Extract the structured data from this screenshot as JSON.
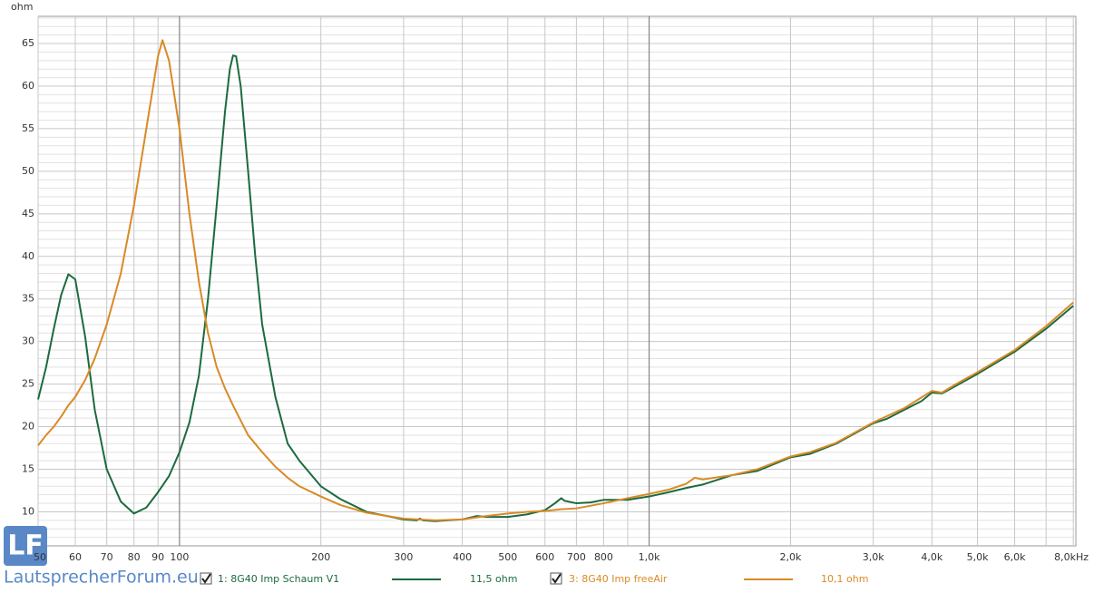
{
  "chart_data": {
    "type": "line",
    "y_unit": "ohm",
    "x_unit": "kHz",
    "log_x": true,
    "grid": true,
    "xlim": [
      50,
      8100
    ],
    "ylim": [
      6,
      68.2
    ],
    "xticks": [
      50,
      60,
      70,
      80,
      90,
      100,
      200,
      300,
      400,
      500,
      600,
      700,
      800,
      {
        "value": 1000,
        "label": "1,0k"
      },
      {
        "value": 2000,
        "label": "2,0k"
      },
      {
        "value": 3000,
        "label": "3,0k"
      },
      {
        "value": 4000,
        "label": "4,0k"
      },
      {
        "value": 5000,
        "label": "5,0k"
      },
      {
        "value": 6000,
        "label": "6,0k"
      },
      {
        "value": 8000,
        "label": "8,0kHz"
      }
    ],
    "xminorticks": [
      900,
      7000
    ],
    "xdecades": [
      100,
      1000
    ],
    "yticks": [
      10,
      15,
      20,
      25,
      30,
      35,
      40,
      45,
      50,
      55,
      60,
      65
    ],
    "yminorticks": [
      7,
      8,
      9,
      11,
      12,
      13,
      14,
      16,
      17,
      18,
      19,
      21,
      22,
      23,
      24,
      26,
      27,
      28,
      29,
      31,
      32,
      33,
      34,
      36,
      37,
      38,
      39,
      41,
      42,
      43,
      44,
      46,
      47,
      48,
      49,
      51,
      52,
      53,
      54,
      56,
      57,
      58,
      59,
      61,
      62,
      63,
      64,
      66,
      67,
      68
    ],
    "series": [
      {
        "name": "1: 8G40 Imp Schaum V1",
        "legend_value": "11,5 ohm",
        "color": "#1b6b3e",
        "x": [
          50,
          52,
          54,
          56,
          58,
          60,
          63,
          66,
          70,
          75,
          80,
          85,
          90,
          95,
          100,
          105,
          110,
          115,
          120,
          125,
          128,
          130,
          132,
          135,
          140,
          145,
          150,
          160,
          170,
          180,
          200,
          220,
          250,
          300,
          320,
          325,
          330,
          350,
          400,
          430,
          450,
          500,
          550,
          600,
          630,
          650,
          660,
          700,
          750,
          800,
          900,
          1000,
          1100,
          1200,
          1300,
          1500,
          1700,
          2000,
          2200,
          2500,
          3000,
          3200,
          3500,
          3800,
          4000,
          4200,
          4500,
          5000,
          6000,
          7000,
          8000
        ],
        "values": [
          23.2,
          27,
          31.5,
          35.5,
          37.9,
          37.3,
          30.5,
          22,
          15,
          11.2,
          9.8,
          10.5,
          12.3,
          14.2,
          17,
          20.5,
          26,
          35,
          46,
          57,
          62,
          63.6,
          63.5,
          60,
          50,
          40,
          32,
          23.5,
          18,
          16,
          13,
          11.5,
          10,
          9.1,
          9,
          9.2,
          9,
          8.9,
          9.1,
          9.5,
          9.4,
          9.4,
          9.7,
          10.2,
          11,
          11.6,
          11.3,
          11,
          11.1,
          11.4,
          11.4,
          11.8,
          12.3,
          12.8,
          13.2,
          14.3,
          14.8,
          16.4,
          16.8,
          18,
          20.4,
          20.9,
          22,
          23,
          24,
          23.9,
          24.8,
          26.2,
          28.8,
          31.5,
          34.2
        ]
      },
      {
        "name": "3: 8G40 Imp freeAir",
        "legend_value": "10,1 ohm",
        "color": "#d98a26",
        "x": [
          50,
          52,
          54,
          56,
          58,
          60,
          63,
          66,
          70,
          75,
          80,
          85,
          90,
          92,
          95,
          100,
          105,
          110,
          115,
          120,
          125,
          130,
          140,
          150,
          160,
          170,
          180,
          200,
          220,
          250,
          300,
          350,
          400,
          450,
          500,
          550,
          600,
          650,
          700,
          800,
          900,
          1000,
          1100,
          1200,
          1250,
          1300,
          1500,
          1700,
          2000,
          2200,
          2500,
          3000,
          3500,
          4000,
          4200,
          4500,
          5000,
          6000,
          7000,
          8000
        ],
        "values": [
          17.8,
          19,
          20,
          21.2,
          22.5,
          23.5,
          25.5,
          28,
          32,
          38,
          46,
          55,
          63.5,
          65.4,
          63,
          55,
          45,
          37,
          31,
          27,
          24.5,
          22.5,
          19,
          17,
          15.3,
          14,
          13,
          11.8,
          10.8,
          9.9,
          9.2,
          9,
          9.1,
          9.5,
          9.8,
          10,
          10.1,
          10.3,
          10.4,
          11,
          11.6,
          12.1,
          12.6,
          13.3,
          14,
          13.8,
          14.3,
          15,
          16.5,
          17,
          18.1,
          20.5,
          22.2,
          24.2,
          24,
          25,
          26.4,
          29,
          31.8,
          34.6
        ]
      }
    ],
    "logo": "LF",
    "site": "LautsprecherForum.eu"
  }
}
